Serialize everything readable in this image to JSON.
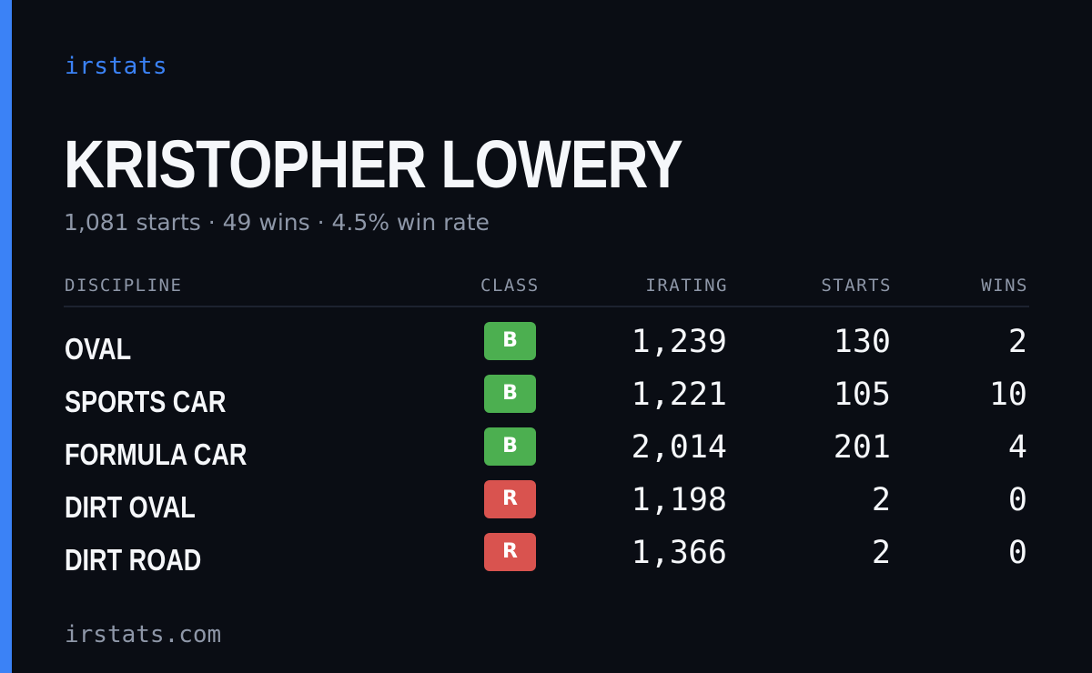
{
  "theme": {
    "accent": "#3b82f6",
    "background": "#0a0d14",
    "text": "#f5f7fa",
    "muted": "#8e97a8",
    "class_colors": {
      "B": "#4caf50",
      "R": "#d9534f"
    }
  },
  "brand": "irstats",
  "driver": {
    "name": "KRISTOPHER LOWERY",
    "summary": "1,081 starts · 49 wins · 4.5% win rate"
  },
  "table": {
    "headers": {
      "discipline": "DISCIPLINE",
      "class": "CLASS",
      "irating": "IRATING",
      "starts": "STARTS",
      "wins": "WINS"
    },
    "rows": [
      {
        "discipline": "OVAL",
        "class": "B",
        "irating": "1,239",
        "starts": "130",
        "wins": "2"
      },
      {
        "discipline": "SPORTS CAR",
        "class": "B",
        "irating": "1,221",
        "starts": "105",
        "wins": "10"
      },
      {
        "discipline": "FORMULA CAR",
        "class": "B",
        "irating": "2,014",
        "starts": "201",
        "wins": "4"
      },
      {
        "discipline": "DIRT OVAL",
        "class": "R",
        "irating": "1,198",
        "starts": "2",
        "wins": "0"
      },
      {
        "discipline": "DIRT ROAD",
        "class": "R",
        "irating": "1,366",
        "starts": "2",
        "wins": "0"
      }
    ]
  },
  "footer": "irstats.com"
}
